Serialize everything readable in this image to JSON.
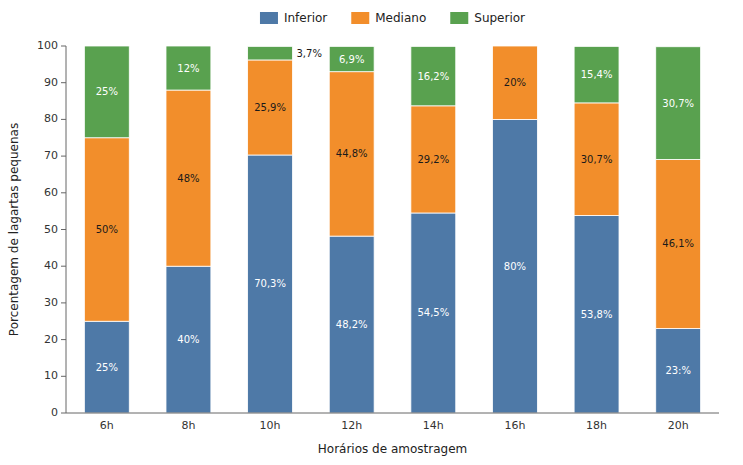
{
  "chart_data": {
    "type": "bar",
    "stacked": true,
    "categories": [
      "6h",
      "8h",
      "10h",
      "12h",
      "14h",
      "16h",
      "18h",
      "20h"
    ],
    "series": [
      {
        "name": "Inferior",
        "values": [
          25.0,
          40.0,
          70.3,
          48.2,
          54.5,
          80.0,
          53.8,
          23.0
        ],
        "value_labels": [
          "25%",
          "40%",
          "70,3%",
          "48,2%",
          "54,5%",
          "80%",
          "53,8%",
          "23:%"
        ]
      },
      {
        "name": "Mediano",
        "values": [
          50.0,
          48.0,
          25.9,
          44.8,
          29.2,
          20.0,
          30.7,
          46.1
        ],
        "value_labels": [
          "50%",
          "48%",
          "25,9%",
          "44,8%",
          "29,2%",
          "20%",
          "30,7%",
          "46,1%"
        ]
      },
      {
        "name": "Superior",
        "values": [
          25.0,
          12.0,
          3.7,
          6.9,
          16.2,
          0.0,
          15.4,
          30.7
        ],
        "value_labels": [
          "25%",
          "12%",
          "3,7%",
          "6,9%",
          "16,2%",
          null,
          "15,4%",
          "30,7%"
        ]
      }
    ],
    "xlabel": "Horários de amostragem",
    "ylabel": "Porcentagem de lagartas pequenas",
    "ylim": [
      0,
      100
    ],
    "yticks": [
      0,
      10,
      20,
      30,
      40,
      50,
      60,
      70,
      80,
      90,
      100
    ],
    "data_labels": true,
    "legend": "top",
    "grid": false
  }
}
